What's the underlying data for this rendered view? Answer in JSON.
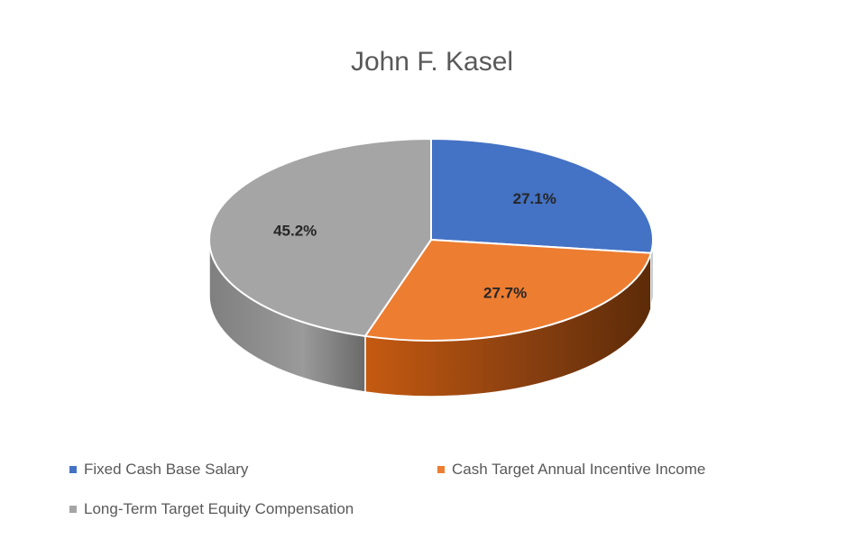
{
  "chart_data": {
    "type": "pie",
    "title": "John F. Kasel",
    "style": "3d",
    "slices": [
      {
        "label": "Fixed Cash Base Salary",
        "value": 27.1,
        "value_label": "27.1%",
        "color": "#4472C4",
        "side_color": "#2F5597"
      },
      {
        "label": "Cash Target Annual Incentive Income",
        "value": 27.7,
        "value_label": "27.7%",
        "color": "#ED7D31",
        "side_color": "#A04E12"
      },
      {
        "label": "Long-Term Target Equity Compensation",
        "value": 45.2,
        "value_label": "45.2%",
        "color": "#A5A5A5",
        "side_color": "#6E6E6E"
      }
    ],
    "legend_position": "bottom"
  }
}
